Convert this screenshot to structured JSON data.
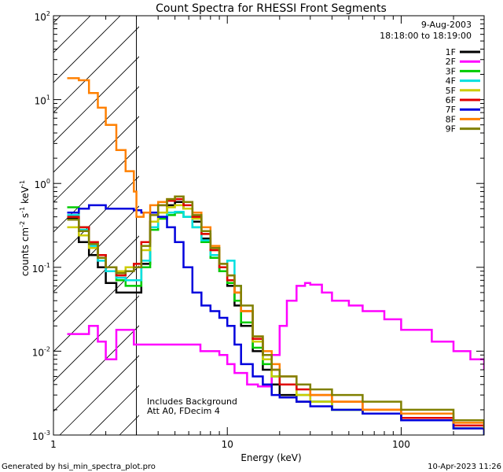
{
  "chart_data": {
    "type": "line",
    "title": "Count Spectra for RHESSI Front Segments",
    "xlabel": "Energy (keV)",
    "ylabel_main": "counts cm",
    "ylabel_exp1": "-2",
    "ylabel_mid": " s",
    "ylabel_exp2": "-1",
    "ylabel_end": " keV",
    "ylabel_exp3": "-1",
    "xscale": "log",
    "yscale": "log",
    "xlim": [
      1,
      300
    ],
    "ylim": [
      0.001,
      100
    ],
    "x_tick_labels": [
      {
        "value": 1,
        "label": "1"
      },
      {
        "value": 10,
        "label": "10"
      },
      {
        "value": 100,
        "label": "100"
      }
    ],
    "y_tick_labels": [
      {
        "value": 100,
        "base": "10",
        "exp": "2"
      },
      {
        "value": 10,
        "base": "10",
        "exp": "1"
      },
      {
        "value": 1,
        "base": "10",
        "exp": "0"
      },
      {
        "value": 0.1,
        "base": "10",
        "exp": "-1"
      },
      {
        "value": 0.01,
        "base": "10",
        "exp": "-2"
      },
      {
        "value": 0.001,
        "base": "10",
        "exp": "-3"
      }
    ],
    "date": "9-Aug-2003",
    "time_range": "18:18:00 to 18:19:00",
    "hatched_region_keV": [
      1,
      3
    ],
    "annotations": [
      "Includes Background",
      "Att A0, FDecim 4"
    ],
    "legend_position": "top-right",
    "series": [
      {
        "name": "1F",
        "color": "#000000",
        "x": [
          1.2,
          1.4,
          1.6,
          1.8,
          2.0,
          2.3,
          2.6,
          2.9,
          3.2,
          3.6,
          4.0,
          4.5,
          5.0,
          5.6,
          6.3,
          7.1,
          8.0,
          9.0,
          10,
          11,
          12,
          14,
          16,
          18,
          20,
          25,
          30,
          40,
          60,
          100,
          200,
          300
        ],
        "y": [
          0.38,
          0.2,
          0.14,
          0.1,
          0.065,
          0.05,
          0.05,
          0.05,
          0.11,
          0.35,
          0.45,
          0.55,
          0.6,
          0.5,
          0.35,
          0.22,
          0.14,
          0.09,
          0.06,
          0.035,
          0.02,
          0.01,
          0.006,
          0.004,
          0.003,
          0.0025,
          0.0025,
          0.002,
          0.0018,
          0.0015,
          0.0012,
          0.001
        ]
      },
      {
        "name": "2F",
        "color": "#ff00ff",
        "x": [
          1.2,
          1.4,
          1.6,
          1.8,
          2.0,
          2.3,
          2.6,
          2.9,
          3.5,
          5,
          7,
          9,
          10,
          11,
          13,
          15,
          18,
          20,
          22,
          25,
          28,
          30,
          35,
          40,
          50,
          60,
          80,
          100,
          150,
          200,
          250,
          300
        ],
        "y": [
          0.016,
          0.016,
          0.02,
          0.013,
          0.008,
          0.018,
          0.018,
          0.012,
          0.012,
          0.012,
          0.01,
          0.009,
          0.007,
          0.0055,
          0.004,
          0.0038,
          0.009,
          0.02,
          0.04,
          0.06,
          0.065,
          0.062,
          0.05,
          0.04,
          0.035,
          0.03,
          0.024,
          0.018,
          0.013,
          0.01,
          0.008,
          0.006
        ]
      },
      {
        "name": "3F",
        "color": "#00cc00",
        "x": [
          1.2,
          1.4,
          1.6,
          1.8,
          2.0,
          2.3,
          2.6,
          2.9,
          3.2,
          3.6,
          4.0,
          4.5,
          5.0,
          5.6,
          6.3,
          7.1,
          8.0,
          9.0,
          10,
          11,
          12,
          14,
          16,
          18,
          20,
          25,
          30,
          40,
          60,
          100,
          200,
          300
        ],
        "y": [
          0.52,
          0.3,
          0.2,
          0.14,
          0.1,
          0.07,
          0.06,
          0.06,
          0.1,
          0.28,
          0.38,
          0.42,
          0.45,
          0.4,
          0.3,
          0.2,
          0.13,
          0.09,
          0.065,
          0.04,
          0.022,
          0.011,
          0.007,
          0.005,
          0.004,
          0.003,
          0.0025,
          0.002,
          0.0018,
          0.0015,
          0.0012,
          0.001
        ]
      },
      {
        "name": "4F",
        "color": "#00e0e0",
        "x": [
          1.2,
          1.4,
          1.6,
          1.8,
          2.0,
          2.3,
          2.6,
          2.9,
          3.2,
          3.6,
          4.0,
          4.5,
          5.0,
          5.6,
          6.3,
          7.1,
          8.0,
          9.0,
          10,
          11,
          12,
          14,
          16,
          18,
          20,
          25,
          30,
          40,
          60,
          100,
          200,
          300
        ],
        "y": [
          0.42,
          0.28,
          0.18,
          0.12,
          0.09,
          0.075,
          0.07,
          0.07,
          0.12,
          0.3,
          0.4,
          0.45,
          0.46,
          0.4,
          0.3,
          0.21,
          0.14,
          0.1,
          0.12,
          0.06,
          0.03,
          0.013,
          0.008,
          0.005,
          0.004,
          0.003,
          0.0025,
          0.002,
          0.0018,
          0.0015,
          0.0012,
          0.001
        ]
      },
      {
        "name": "5F",
        "color": "#cccc00",
        "x": [
          1.2,
          1.4,
          1.6,
          1.8,
          2.0,
          2.3,
          2.6,
          2.9,
          3.2,
          3.6,
          4.0,
          4.5,
          5.0,
          5.6,
          6.3,
          7.1,
          8.0,
          9.0,
          10,
          11,
          12,
          14,
          16,
          18,
          20,
          25,
          30,
          40,
          60,
          100,
          200,
          300
        ],
        "y": [
          0.3,
          0.24,
          0.17,
          0.13,
          0.1,
          0.09,
          0.1,
          0.11,
          0.16,
          0.35,
          0.45,
          0.52,
          0.55,
          0.5,
          0.38,
          0.25,
          0.16,
          0.1,
          0.07,
          0.05,
          0.03,
          0.013,
          0.008,
          0.005,
          0.004,
          0.003,
          0.0025,
          0.002,
          0.0018,
          0.0015,
          0.0012,
          0.001
        ]
      },
      {
        "name": "6F",
        "color": "#e00000",
        "x": [
          1.2,
          1.4,
          1.6,
          1.8,
          2.0,
          2.3,
          2.6,
          2.9,
          3.2,
          3.6,
          4.0,
          4.5,
          5.0,
          5.6,
          6.3,
          7.1,
          8.0,
          9.0,
          10,
          11,
          12,
          14,
          16,
          18,
          20,
          25,
          30,
          40,
          60,
          100,
          200,
          300
        ],
        "y": [
          0.4,
          0.3,
          0.2,
          0.14,
          0.1,
          0.08,
          0.09,
          0.11,
          0.2,
          0.45,
          0.55,
          0.62,
          0.65,
          0.55,
          0.4,
          0.25,
          0.16,
          0.1,
          0.07,
          0.05,
          0.03,
          0.014,
          0.009,
          0.006,
          0.004,
          0.0035,
          0.003,
          0.0025,
          0.002,
          0.0016,
          0.0013,
          0.0011
        ]
      },
      {
        "name": "7F",
        "color": "#0000dd",
        "x": [
          1.2,
          1.4,
          1.6,
          1.8,
          2.0,
          2.3,
          2.6,
          2.9,
          3.2,
          3.6,
          4.0,
          4.5,
          5.0,
          5.6,
          6.3,
          7.1,
          8.0,
          9.0,
          10,
          11,
          12,
          14,
          16,
          18,
          20,
          25,
          30,
          40,
          60,
          100,
          200,
          300
        ],
        "y": [
          0.45,
          0.5,
          0.55,
          0.55,
          0.5,
          0.5,
          0.5,
          0.48,
          0.45,
          0.45,
          0.4,
          0.3,
          0.2,
          0.1,
          0.05,
          0.035,
          0.03,
          0.025,
          0.02,
          0.012,
          0.007,
          0.005,
          0.004,
          0.003,
          0.0028,
          0.0025,
          0.0022,
          0.002,
          0.0018,
          0.0015,
          0.0012,
          0.001
        ]
      },
      {
        "name": "8F",
        "color": "#ff8000",
        "x": [
          1.2,
          1.4,
          1.6,
          1.8,
          2.0,
          2.3,
          2.6,
          2.9,
          3.0,
          3.3,
          3.6,
          4.0,
          4.5,
          5.0,
          5.6,
          6.3,
          7.1,
          8.0,
          9.0,
          10,
          11,
          12,
          14,
          16,
          18,
          20,
          25,
          30,
          40,
          60,
          100,
          200,
          300
        ],
        "y": [
          18,
          17,
          12,
          8,
          5,
          2.5,
          1.4,
          0.8,
          0.4,
          0.45,
          0.55,
          0.6,
          0.65,
          0.7,
          0.6,
          0.45,
          0.3,
          0.18,
          0.11,
          0.08,
          0.05,
          0.03,
          0.015,
          0.01,
          0.007,
          0.005,
          0.004,
          0.003,
          0.0025,
          0.002,
          0.0018,
          0.0014,
          0.0012
        ]
      },
      {
        "name": "9F",
        "color": "#808000",
        "x": [
          1.2,
          1.4,
          1.6,
          1.8,
          2.0,
          2.3,
          2.6,
          2.9,
          3.2,
          3.6,
          4.0,
          4.5,
          5.0,
          5.6,
          6.3,
          7.1,
          8.0,
          9.0,
          10,
          11,
          12,
          14,
          16,
          18,
          20,
          25,
          30,
          40,
          60,
          100,
          200,
          300
        ],
        "y": [
          0.37,
          0.27,
          0.19,
          0.13,
          0.1,
          0.085,
          0.09,
          0.1,
          0.18,
          0.42,
          0.55,
          0.65,
          0.7,
          0.6,
          0.42,
          0.27,
          0.17,
          0.11,
          0.08,
          0.06,
          0.035,
          0.015,
          0.009,
          0.006,
          0.005,
          0.004,
          0.0035,
          0.003,
          0.0025,
          0.002,
          0.0015,
          0.0012
        ]
      }
    ]
  },
  "footer": {
    "generated_by": "Generated by hsi_min_spectra_plot.pro",
    "timestamp": "10-Apr-2023 11:26"
  }
}
